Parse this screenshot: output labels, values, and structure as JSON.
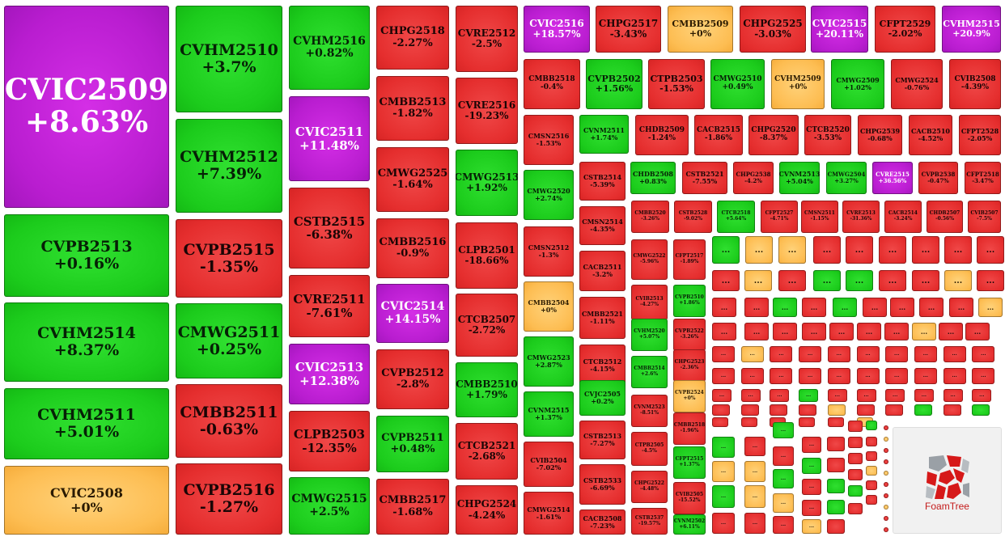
{
  "colors": {
    "negative": "#e52e2e",
    "positive": "#1ccc1c",
    "unchanged": "#fdbd52",
    "ceiling": "#b91dd0"
  },
  "branding": {
    "logo_text": "FoamTree"
  },
  "overflow_label": "...",
  "tiles": [
    {
      "name": "CVIC2509",
      "change": "+8.63%",
      "status": "ceiling"
    },
    {
      "name": "CVPB2513",
      "change": "+0.16%",
      "status": "up"
    },
    {
      "name": "CVHM2514",
      "change": "+8.37%",
      "status": "up"
    },
    {
      "name": "CVHM2511",
      "change": "+5.01%",
      "status": "up"
    },
    {
      "name": "CVIC2508",
      "change": "+0%",
      "status": "ref"
    },
    {
      "name": "CVHM2510",
      "change": "+3.7%",
      "status": "up"
    },
    {
      "name": "CVHM2512",
      "change": "+7.39%",
      "status": "up"
    },
    {
      "name": "CVPB2515",
      "change": "-1.35%",
      "status": "down"
    },
    {
      "name": "CMWG2511",
      "change": "+0.25%",
      "status": "up"
    },
    {
      "name": "CMBB2511",
      "change": "-0.63%",
      "status": "down"
    },
    {
      "name": "CVPB2516",
      "change": "-1.27%",
      "status": "down"
    },
    {
      "name": "CVHM2516",
      "change": "+0.82%",
      "status": "up"
    },
    {
      "name": "CVIC2511",
      "change": "+11.48%",
      "status": "ceiling"
    },
    {
      "name": "CSTB2515",
      "change": "-6.38%",
      "status": "down"
    },
    {
      "name": "CVRE2511",
      "change": "-7.61%",
      "status": "down"
    },
    {
      "name": "CVIC2513",
      "change": "+12.38%",
      "status": "ceiling"
    },
    {
      "name": "CLPB2503",
      "change": "-12.35%",
      "status": "down"
    },
    {
      "name": "CMWG2515",
      "change": "+2.5%",
      "status": "up"
    },
    {
      "name": "CHPG2518",
      "change": "-2.27%",
      "status": "down"
    },
    {
      "name": "CMBB2513",
      "change": "-1.82%",
      "status": "down"
    },
    {
      "name": "CMWG2525",
      "change": "-1.64%",
      "status": "down"
    },
    {
      "name": "CMBB2516",
      "change": "-0.9%",
      "status": "down"
    },
    {
      "name": "CVIC2514",
      "change": "+14.15%",
      "status": "ceiling"
    },
    {
      "name": "CVPB2512",
      "change": "-2.8%",
      "status": "down"
    },
    {
      "name": "CVPB2511",
      "change": "+0.48%",
      "status": "up"
    },
    {
      "name": "CMBB2517",
      "change": "-1.68%",
      "status": "down"
    },
    {
      "name": "CVRE2512",
      "change": "-2.5%",
      "status": "down"
    },
    {
      "name": "CVRE2516",
      "change": "-19.23%",
      "status": "down"
    },
    {
      "name": "CMWG2513",
      "change": "+1.92%",
      "status": "up"
    },
    {
      "name": "CLPB2501",
      "change": "-18.66%",
      "status": "down"
    },
    {
      "name": "CTCB2507",
      "change": "-2.72%",
      "status": "down"
    },
    {
      "name": "CMBB2510",
      "change": "+1.79%",
      "status": "up"
    },
    {
      "name": "CTCB2521",
      "change": "-2.68%",
      "status": "down"
    },
    {
      "name": "CHPG2524",
      "change": "-4.24%",
      "status": "down"
    },
    {
      "name": "CVIC2516",
      "change": "+18.57%",
      "status": "ceiling"
    },
    {
      "name": "CHPG2517",
      "change": "-3.43%",
      "status": "down"
    },
    {
      "name": "CMBB2509",
      "change": "+0%",
      "status": "ref"
    },
    {
      "name": "CHPG2525",
      "change": "-3.03%",
      "status": "down"
    },
    {
      "name": "CVIC2515",
      "change": "+20.11%",
      "status": "ceiling"
    },
    {
      "name": "CFPT2529",
      "change": "-2.02%",
      "status": "down"
    },
    {
      "name": "CVHM2515",
      "change": "+20.9%",
      "status": "ceiling"
    },
    {
      "name": "CMBB2518",
      "change": "-0.4%",
      "status": "down"
    },
    {
      "name": "CVPB2502",
      "change": "+1.56%",
      "status": "up"
    },
    {
      "name": "CTPB2503",
      "change": "-1.53%",
      "status": "down"
    },
    {
      "name": "CMWG2510",
      "change": "+0.49%",
      "status": "up"
    },
    {
      "name": "CVHM2509",
      "change": "+0%",
      "status": "ref"
    },
    {
      "name": "CMWG2509",
      "change": "+1.02%",
      "status": "up"
    },
    {
      "name": "CMWG2524",
      "change": "-0.76%",
      "status": "down"
    },
    {
      "name": "CVIB2508",
      "change": "-4.39%",
      "status": "down"
    },
    {
      "name": "CMSN2516",
      "change": "-1.53%",
      "status": "down"
    },
    {
      "name": "CVNM2511",
      "change": "+1.74%",
      "status": "up"
    },
    {
      "name": "CHDB2509",
      "change": "-1.24%",
      "status": "down"
    },
    {
      "name": "CACB2515",
      "change": "-1.86%",
      "status": "down"
    },
    {
      "name": "CHPG2520",
      "change": "-8.37%",
      "status": "down"
    },
    {
      "name": "CTCB2520",
      "change": "-3.53%",
      "status": "down"
    },
    {
      "name": "CHPG2539",
      "change": "-0.68%",
      "status": "down"
    },
    {
      "name": "CACB2510",
      "change": "-4.52%",
      "status": "down"
    },
    {
      "name": "CFPT2528",
      "change": "-2.05%",
      "status": "down"
    },
    {
      "name": "CMWG2520",
      "change": "+2.74%",
      "status": "up"
    },
    {
      "name": "CSTB2514",
      "change": "-5.39%",
      "status": "down"
    },
    {
      "name": "CHDB2508",
      "change": "+0.83%",
      "status": "up"
    },
    {
      "name": "CSTB2521",
      "change": "-7.55%",
      "status": "down"
    },
    {
      "name": "CHPG2538",
      "change": "-4.2%",
      "status": "down"
    },
    {
      "name": "CVNM2513",
      "change": "+5.04%",
      "status": "up"
    },
    {
      "name": "CMWG2504",
      "change": "+3.27%",
      "status": "up"
    },
    {
      "name": "CVRE2515",
      "change": "+36.56%",
      "status": "ceiling"
    },
    {
      "name": "CVPB2538",
      "change": "-0.47%",
      "status": "down"
    },
    {
      "name": "CFPT2518",
      "change": "-3.47%",
      "status": "down"
    },
    {
      "name": "CMSN2514",
      "change": "-4.35%",
      "status": "down"
    },
    {
      "name": "CMBB2520",
      "change": "-3.26%",
      "status": "down"
    },
    {
      "name": "CSTB2528",
      "change": "-9.02%",
      "status": "down"
    },
    {
      "name": "CTCB2518",
      "change": "+5.64%",
      "status": "up"
    },
    {
      "name": "CFPT2527",
      "change": "-4.71%",
      "status": "down"
    },
    {
      "name": "CMSN2511",
      "change": "-1.15%",
      "status": "down"
    },
    {
      "name": "CVRE2513",
      "change": "-31.36%",
      "status": "down"
    },
    {
      "name": "CACB2514",
      "change": "-3.24%",
      "status": "down"
    },
    {
      "name": "CHDB2507",
      "change": "-0.56%",
      "status": "down"
    },
    {
      "name": "CVIB2507",
      "change": "-7.5%",
      "status": "down"
    },
    {
      "name": "CMSN2512",
      "change": "-1.3%",
      "status": "down"
    },
    {
      "name": "CACB2511",
      "change": "-3.2%",
      "status": "down"
    },
    {
      "name": "CMWG2522",
      "change": "-5.96%",
      "status": "down"
    },
    {
      "name": "CFPT2517",
      "change": "-1.89%",
      "status": "down"
    },
    {
      "name": "CMBB2504",
      "change": "+0%",
      "status": "ref"
    },
    {
      "name": "CMBB2521",
      "change": "-1.11%",
      "status": "down"
    },
    {
      "name": "CVIB2513",
      "change": "-4.27%",
      "status": "down"
    },
    {
      "name": "CVPB2510",
      "change": "+1.86%",
      "status": "up"
    },
    {
      "name": "CMWG2523",
      "change": "+2.87%",
      "status": "up"
    },
    {
      "name": "CTCB2512",
      "change": "-4.15%",
      "status": "down"
    },
    {
      "name": "CVHM2520",
      "change": "+5.07%",
      "status": "up"
    },
    {
      "name": "CVPB2522",
      "change": "-3.26%",
      "status": "down"
    },
    {
      "name": "CMBB2514",
      "change": "+2.6%",
      "status": "up"
    },
    {
      "name": "CHPG2523",
      "change": "-2.36%",
      "status": "down"
    },
    {
      "name": "CVNM2515",
      "change": "+1.37%",
      "status": "up"
    },
    {
      "name": "CVJC2505",
      "change": "+0.2%",
      "status": "up"
    },
    {
      "name": "CVNM2523",
      "change": "-8.51%",
      "status": "down"
    },
    {
      "name": "CVPB2524",
      "change": "+0%",
      "status": "ref"
    },
    {
      "name": "CVIB2504",
      "change": "-7.02%",
      "status": "down"
    },
    {
      "name": "CSTB2513",
      "change": "-7.27%",
      "status": "down"
    },
    {
      "name": "CTPB2505",
      "change": "-4.5%",
      "status": "down"
    },
    {
      "name": "CMBB2518",
      "change": "-1.96%",
      "status": "down"
    },
    {
      "name": "CSTB2533",
      "change": "-6.69%",
      "status": "down"
    },
    {
      "name": "CHPG2522",
      "change": "-4.48%",
      "status": "down"
    },
    {
      "name": "CFPT2515",
      "change": "+1.37%",
      "status": "up"
    },
    {
      "name": "CMWG2514",
      "change": "-1.61%",
      "status": "down"
    },
    {
      "name": "CACB2508",
      "change": "-7.23%",
      "status": "down"
    },
    {
      "name": "CSTB2537",
      "change": "-19.57%",
      "status": "down"
    },
    {
      "name": "CVIB2505",
      "change": "-15.52%",
      "status": "down"
    },
    {
      "name": "CVNM2502",
      "change": "+6.11%",
      "status": "up"
    }
  ],
  "small_tiles": [
    "up",
    "ref",
    "ref",
    "down",
    "down",
    "down",
    "down",
    "down",
    "down",
    "down",
    "ref",
    "down",
    "up",
    "up",
    "down",
    "down",
    "ref",
    "down",
    "down",
    "down",
    "up",
    "down",
    "up",
    "down",
    "down",
    "down",
    "down",
    "ref",
    "down",
    "down",
    "down",
    "down",
    "down",
    "down",
    "down",
    "ref",
    "down",
    "down",
    "down",
    "ref",
    "down",
    "down",
    "down",
    "down",
    "down",
    "down",
    "down",
    "down",
    "down",
    "down",
    "down",
    "down",
    "down",
    "down",
    "down",
    "down",
    "down",
    "down",
    "down",
    "down",
    "down",
    "up",
    "down",
    "down",
    "down",
    "down",
    "down",
    "down",
    "down",
    "down",
    "down",
    "down",
    "ref",
    "down",
    "down",
    "up",
    "down",
    "up",
    "down",
    "down",
    "down",
    "down",
    "down",
    "ref",
    "down",
    "ref",
    "down",
    "down",
    "up",
    "down",
    "up",
    "down",
    "down",
    "down",
    "up",
    "ref",
    "ref",
    "down",
    "up",
    "down",
    "down",
    "down",
    "up",
    "ref",
    "up",
    "down",
    "up",
    "down",
    "down",
    "down",
    "down",
    "ref",
    "down",
    "up",
    "down",
    "ref",
    "down",
    "ref",
    "down",
    "up",
    "down",
    "down",
    "down",
    "ref",
    "down",
    "down",
    "up",
    "down",
    "down",
    "down",
    "ref"
  ]
}
